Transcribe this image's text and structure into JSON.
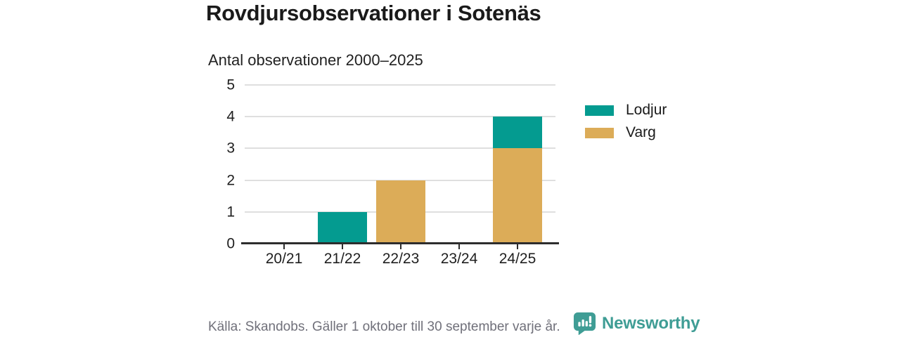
{
  "title": "Rovdjursobservationer i Sotenäs",
  "subtitle": "Antal observationer 2000–2025",
  "chart_data": {
    "type": "bar",
    "stacked": true,
    "title": "Rovdjursobservationer i Sotenäs",
    "subtitle": "Antal observationer 2000–2025",
    "categories": [
      "20/21",
      "21/22",
      "22/23",
      "23/24",
      "24/25"
    ],
    "series": [
      {
        "name": "Lodjur",
        "color": "#049b90",
        "values": [
          0,
          1,
          0,
          0,
          1
        ]
      },
      {
        "name": "Varg",
        "color": "#dcac58",
        "values": [
          0,
          0,
          2,
          0,
          3
        ]
      }
    ],
    "stack_order_bottom_to_top": [
      "Varg",
      "Lodjur"
    ],
    "totals": [
      0,
      1,
      2,
      0,
      4
    ],
    "ylim": [
      0,
      5
    ],
    "yticks": [
      0,
      1,
      2,
      3,
      4,
      5
    ],
    "grid": true,
    "legend_position": "right"
  },
  "legend": {
    "items": [
      {
        "label": "Lodjur",
        "color": "#049b90"
      },
      {
        "label": "Varg",
        "color": "#dcac58"
      }
    ]
  },
  "footer": {
    "source_note": "Källa: Skandobs. Gäller 1 oktober till 30 september varje år.",
    "brand_name": "Newsworthy",
    "logo_icon": "speech-bubble-bar-chart-icon"
  },
  "colors": {
    "lodjur": "#049b90",
    "varg": "#dcac58",
    "grid": "#dfdfdf",
    "axis": "#2d2d2d",
    "text": "#1a1a1a",
    "muted_text": "#70707a",
    "brand": "#3f9d95",
    "background": "#ffffff"
  }
}
